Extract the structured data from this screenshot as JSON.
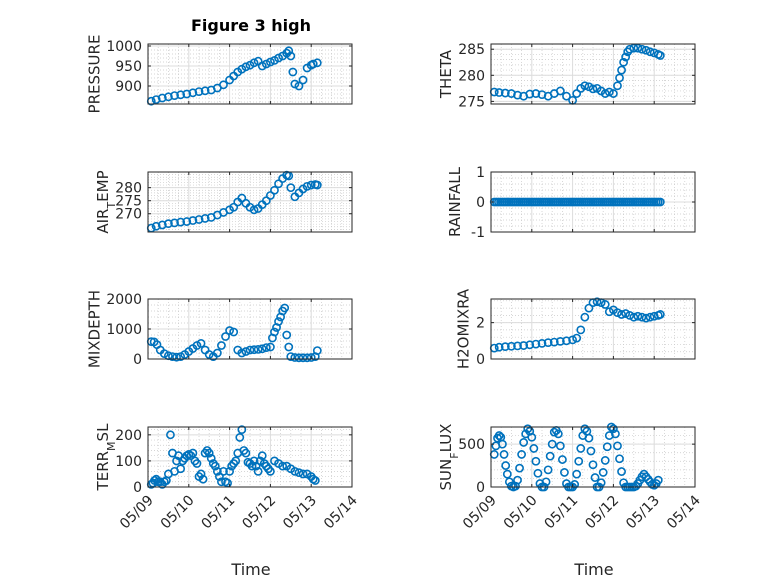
{
  "chart_data": {
    "type": "scatter",
    "title": "Figure 3 high",
    "xlabel": "Time",
    "x_ticks": [
      "05/09",
      "05/10",
      "05/11",
      "05/12",
      "05/13",
      "05/14"
    ],
    "xlim": [
      "05/09",
      "05/14"
    ],
    "marker_color": "#0072BD",
    "grid": true,
    "panels": [
      {
        "ylabel": "PRESSURE",
        "ylim": [
          855,
          1005
        ],
        "yticks": [
          900,
          950,
          1000
        ],
        "x": [
          0.08,
          0.2,
          0.35,
          0.5,
          0.65,
          0.8,
          0.95,
          1.1,
          1.25,
          1.4,
          1.55,
          1.7,
          1.85,
          2.0,
          2.1,
          2.2,
          2.3,
          2.4,
          2.5,
          2.6,
          2.7,
          2.8,
          2.9,
          3.0,
          3.1,
          3.2,
          3.3,
          3.4,
          3.45,
          3.5,
          3.55,
          3.6,
          3.7,
          3.8,
          3.9,
          4.0,
          4.05,
          4.15
        ],
        "y": [
          862,
          866,
          870,
          873,
          876,
          878,
          880,
          883,
          886,
          888,
          890,
          895,
          903,
          915,
          925,
          935,
          942,
          948,
          952,
          958,
          962,
          950,
          955,
          960,
          964,
          970,
          975,
          982,
          988,
          975,
          935,
          905,
          900,
          915,
          945,
          952,
          955,
          958
        ]
      },
      {
        "ylabel": "THETA",
        "ylim": [
          274.5,
          286
        ],
        "yticks": [
          275,
          280,
          285
        ],
        "x": [
          0.08,
          0.2,
          0.35,
          0.5,
          0.65,
          0.8,
          0.95,
          1.1,
          1.25,
          1.4,
          1.55,
          1.7,
          1.85,
          2.0,
          2.1,
          2.2,
          2.3,
          2.4,
          2.5,
          2.6,
          2.7,
          2.8,
          2.9,
          3.0,
          3.1,
          3.15,
          3.2,
          3.25,
          3.3,
          3.35,
          3.4,
          3.5,
          3.6,
          3.7,
          3.8,
          3.9,
          4.0,
          4.1,
          4.15
        ],
        "y": [
          276.8,
          276.7,
          276.6,
          276.5,
          276.2,
          276.0,
          276.4,
          276.5,
          276.3,
          276.0,
          276.5,
          277.0,
          276.0,
          275.2,
          276.5,
          277.5,
          278.0,
          277.8,
          277.4,
          277.5,
          277.0,
          276.5,
          276.8,
          276.5,
          278.0,
          279.5,
          281.0,
          282.5,
          283.5,
          284.5,
          285.0,
          285.2,
          285.2,
          285.0,
          284.8,
          284.5,
          284.3,
          284.0,
          283.8
        ]
      },
      {
        "ylabel": "AIR_TEMP",
        "ylim": [
          263,
          286
        ],
        "yticks": [
          270,
          275,
          280
        ],
        "x": [
          0.08,
          0.2,
          0.35,
          0.5,
          0.65,
          0.8,
          0.95,
          1.1,
          1.25,
          1.4,
          1.55,
          1.7,
          1.85,
          2.0,
          2.1,
          2.2,
          2.3,
          2.4,
          2.5,
          2.6,
          2.7,
          2.8,
          2.9,
          3.0,
          3.1,
          3.2,
          3.3,
          3.4,
          3.45,
          3.5,
          3.6,
          3.7,
          3.8,
          3.9,
          4.0,
          4.1,
          4.15
        ],
        "y": [
          264.5,
          265.2,
          265.7,
          266.2,
          266.5,
          266.8,
          267.0,
          267.4,
          267.8,
          268.2,
          268.6,
          269.5,
          270.5,
          271.5,
          272.5,
          274.5,
          276.0,
          274.0,
          272.5,
          271.5,
          272.0,
          273.5,
          275.0,
          277.0,
          279.0,
          281.5,
          283.5,
          284.8,
          284.5,
          280.0,
          276.5,
          278.0,
          279.5,
          280.5,
          281.0,
          281.2,
          281.0
        ]
      },
      {
        "ylabel": "RAINFALL",
        "ylim": [
          -1,
          1
        ],
        "yticks": [
          -1,
          0,
          1
        ],
        "x_start": 0.08,
        "x_end": 4.15,
        "n_points": 80,
        "y_constant": 0
      },
      {
        "ylabel": "MIXDEPTH",
        "ylim": [
          0,
          2000
        ],
        "yticks": [
          0,
          1000,
          2000
        ],
        "x": [
          0.08,
          0.15,
          0.22,
          0.3,
          0.4,
          0.5,
          0.6,
          0.7,
          0.8,
          0.9,
          1.0,
          1.1,
          1.2,
          1.3,
          1.4,
          1.5,
          1.6,
          1.7,
          1.8,
          1.9,
          2.0,
          2.1,
          2.2,
          2.3,
          2.4,
          2.5,
          2.6,
          2.7,
          2.8,
          2.9,
          3.0,
          3.05,
          3.1,
          3.15,
          3.2,
          3.25,
          3.3,
          3.35,
          3.4,
          3.45,
          3.5,
          3.6,
          3.7,
          3.8,
          3.9,
          4.0,
          4.1,
          4.15
        ],
        "y": [
          580,
          570,
          480,
          300,
          180,
          110,
          80,
          60,
          80,
          150,
          250,
          350,
          450,
          520,
          300,
          150,
          80,
          200,
          450,
          750,
          950,
          900,
          300,
          200,
          250,
          300,
          310,
          320,
          340,
          380,
          400,
          700,
          900,
          1050,
          1250,
          1400,
          1600,
          1700,
          800,
          400,
          80,
          50,
          40,
          40,
          40,
          50,
          80,
          280
        ]
      },
      {
        "ylabel": "H2OMIXRA",
        "ylim": [
          0,
          3.3
        ],
        "yticks": [
          0,
          2
        ],
        "x": [
          0.08,
          0.2,
          0.35,
          0.5,
          0.65,
          0.8,
          0.95,
          1.1,
          1.25,
          1.4,
          1.55,
          1.7,
          1.85,
          2.0,
          2.1,
          2.2,
          2.3,
          2.4,
          2.5,
          2.6,
          2.7,
          2.8,
          2.9,
          3.0,
          3.1,
          3.2,
          3.3,
          3.4,
          3.5,
          3.6,
          3.7,
          3.8,
          3.9,
          4.0,
          4.1,
          4.15
        ],
        "y": [
          0.6,
          0.65,
          0.68,
          0.7,
          0.72,
          0.74,
          0.78,
          0.82,
          0.86,
          0.9,
          0.93,
          0.97,
          1.0,
          1.05,
          1.15,
          1.6,
          2.3,
          2.8,
          3.1,
          3.15,
          3.1,
          3.0,
          2.6,
          2.7,
          2.55,
          2.45,
          2.5,
          2.4,
          2.3,
          2.35,
          2.3,
          2.25,
          2.3,
          2.35,
          2.4,
          2.45
        ]
      },
      {
        "ylabel": "TERR_MSL",
        "ylim": [
          0,
          230
        ],
        "yticks": [
          0,
          100,
          200
        ],
        "x": [
          0.08,
          0.12,
          0.16,
          0.2,
          0.25,
          0.3,
          0.35,
          0.4,
          0.45,
          0.5,
          0.55,
          0.6,
          0.65,
          0.7,
          0.75,
          0.8,
          0.85,
          0.9,
          0.95,
          1.0,
          1.05,
          1.1,
          1.15,
          1.2,
          1.25,
          1.3,
          1.35,
          1.4,
          1.45,
          1.5,
          1.55,
          1.6,
          1.65,
          1.7,
          1.75,
          1.8,
          1.85,
          1.9,
          1.95,
          2.0,
          2.05,
          2.1,
          2.15,
          2.2,
          2.25,
          2.3,
          2.35,
          2.4,
          2.45,
          2.5,
          2.55,
          2.6,
          2.65,
          2.7,
          2.75,
          2.8,
          2.85,
          2.9,
          2.95,
          3.0,
          3.1,
          3.2,
          3.3,
          3.4,
          3.5,
          3.6,
          3.7,
          3.8,
          3.9,
          4.0,
          4.05,
          4.1
        ],
        "y": [
          10,
          15,
          25,
          30,
          20,
          20,
          10,
          20,
          25,
          50,
          200,
          130,
          60,
          100,
          120,
          70,
          100,
          110,
          120,
          125,
          120,
          130,
          100,
          90,
          40,
          50,
          30,
          130,
          140,
          130,
          110,
          90,
          80,
          60,
          40,
          20,
          60,
          20,
          15,
          60,
          80,
          90,
          100,
          130,
          190,
          220,
          140,
          130,
          95,
          90,
          80,
          100,
          80,
          60,
          100,
          120,
          90,
          80,
          70,
          60,
          100,
          90,
          80,
          80,
          70,
          60,
          55,
          50,
          50,
          40,
          30,
          25
        ]
      },
      {
        "ylabel": "SUN_FLUX",
        "ylim": [
          0,
          700
        ],
        "yticks": [
          0,
          500
        ],
        "x": [
          0.08,
          0.12,
          0.16,
          0.2,
          0.24,
          0.28,
          0.32,
          0.36,
          0.4,
          0.45,
          0.5,
          0.55,
          0.6,
          0.65,
          0.7,
          0.75,
          0.8,
          0.85,
          0.9,
          0.95,
          1.0,
          1.05,
          1.1,
          1.15,
          1.2,
          1.25,
          1.3,
          1.35,
          1.4,
          1.45,
          1.5,
          1.55,
          1.6,
          1.65,
          1.7,
          1.75,
          1.8,
          1.85,
          1.9,
          1.95,
          2.0,
          2.05,
          2.1,
          2.15,
          2.2,
          2.25,
          2.3,
          2.35,
          2.4,
          2.45,
          2.5,
          2.55,
          2.6,
          2.65,
          2.7,
          2.75,
          2.8,
          2.85,
          2.9,
          2.95,
          3.0,
          3.05,
          3.1,
          3.15,
          3.2,
          3.25,
          3.3,
          3.35,
          3.4,
          3.45,
          3.5,
          3.55,
          3.6,
          3.65,
          3.7,
          3.75,
          3.8,
          3.85,
          3.9,
          3.95,
          4.0,
          4.05,
          4.1
        ],
        "y": [
          380,
          480,
          570,
          600,
          580,
          500,
          380,
          250,
          150,
          60,
          10,
          0,
          10,
          80,
          220,
          380,
          520,
          620,
          680,
          650,
          580,
          450,
          300,
          160,
          40,
          0,
          0,
          60,
          200,
          360,
          500,
          640,
          660,
          620,
          480,
          320,
          170,
          40,
          0,
          0,
          0,
          30,
          150,
          300,
          450,
          600,
          680,
          650,
          570,
          420,
          260,
          110,
          0,
          0,
          50,
          170,
          310,
          470,
          600,
          700,
          680,
          620,
          480,
          330,
          180,
          50,
          0,
          0,
          0,
          0,
          0,
          10,
          40,
          80,
          120,
          150,
          120,
          90,
          60,
          30,
          20,
          40,
          80
        ]
      }
    ]
  }
}
